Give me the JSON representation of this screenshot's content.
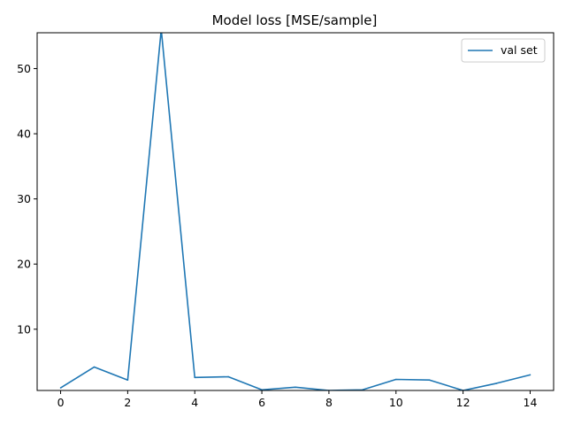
{
  "chart_data": {
    "type": "line",
    "title": "Model loss [MSE/sample]",
    "xlabel": "",
    "ylabel": "",
    "x": [
      0,
      1,
      2,
      3,
      4,
      5,
      6,
      7,
      8,
      9,
      10,
      11,
      12,
      13,
      14
    ],
    "series": [
      {
        "name": "val set",
        "color": "#1f77b4",
        "values": [
          1.0,
          4.2,
          2.2,
          56.0,
          2.6,
          2.7,
          0.7,
          1.1,
          0.6,
          0.7,
          2.3,
          2.2,
          0.6,
          1.7,
          3.0
        ]
      }
    ],
    "xlim": [
      -0.7,
      14.7
    ],
    "ylim": [
      0.6,
      55.5
    ],
    "xticks": [
      0,
      2,
      4,
      6,
      8,
      10,
      12,
      14
    ],
    "yticks": [
      10,
      20,
      30,
      40,
      50
    ],
    "grid": false,
    "legend_position": "top-right"
  }
}
